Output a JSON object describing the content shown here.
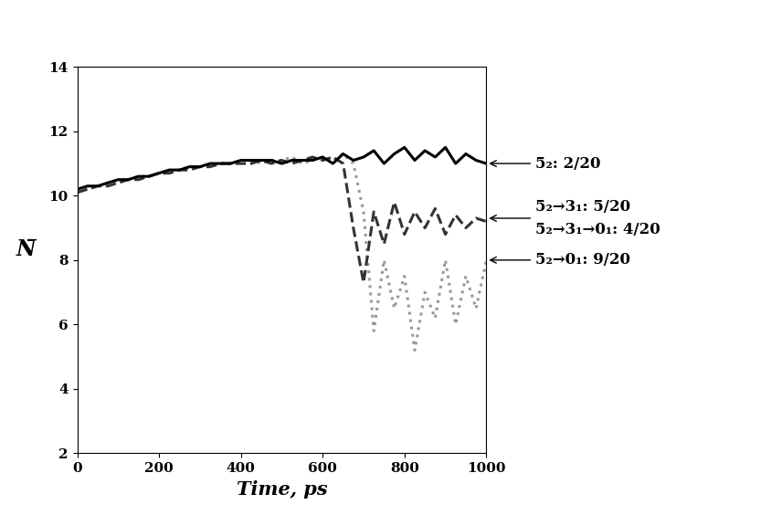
{
  "chart_data": {
    "type": "line",
    "x_label": "Time, ps",
    "y_label": "N̄",
    "x": [
      0,
      25,
      50,
      75,
      100,
      125,
      150,
      175,
      200,
      225,
      250,
      275,
      300,
      325,
      350,
      375,
      400,
      425,
      450,
      475,
      500,
      525,
      550,
      575,
      600,
      625,
      650,
      675,
      700,
      725,
      750,
      775,
      800,
      825,
      850,
      875,
      900,
      925,
      950,
      975,
      1000
    ],
    "series": [
      {
        "color": "#999999",
        "line_style": "dotted",
        "values": [
          10.2,
          10.2,
          10.3,
          10.4,
          10.4,
          10.5,
          10.6,
          10.6,
          10.7,
          10.7,
          10.8,
          10.9,
          10.9,
          10.9,
          11.0,
          11.0,
          11.1,
          11.1,
          11.0,
          11.1,
          11.1,
          11.2,
          11.0,
          11.1,
          11.2,
          11.1,
          11.3,
          11.0,
          9.5,
          5.8,
          8.0,
          6.5,
          7.5,
          5.2,
          7.0,
          6.2,
          8.0,
          6.0,
          7.5,
          6.5,
          8.0
        ]
      },
      {
        "color": "#333333",
        "line_style": "dashed",
        "values": [
          10.1,
          10.2,
          10.3,
          10.3,
          10.4,
          10.5,
          10.5,
          10.6,
          10.7,
          10.7,
          10.8,
          10.8,
          10.9,
          10.9,
          11.0,
          11.0,
          11.0,
          11.0,
          11.1,
          11.0,
          11.1,
          11.0,
          11.1,
          11.2,
          11.1,
          11.2,
          11.0,
          9.0,
          7.3,
          9.5,
          8.5,
          9.8,
          8.8,
          9.5,
          9.0,
          9.6,
          8.8,
          9.4,
          9.0,
          9.3,
          9.2
        ]
      },
      {
        "color": "#000000",
        "line_style": "solid",
        "values": [
          10.2,
          10.3,
          10.3,
          10.4,
          10.5,
          10.5,
          10.6,
          10.6,
          10.7,
          10.8,
          10.8,
          10.9,
          10.9,
          11.0,
          11.0,
          11.0,
          11.1,
          11.1,
          11.1,
          11.1,
          11.0,
          11.1,
          11.1,
          11.1,
          11.2,
          11.0,
          11.3,
          11.1,
          11.2,
          11.4,
          11.0,
          11.3,
          11.5,
          11.1,
          11.4,
          11.2,
          11.5,
          11.0,
          11.3,
          11.1,
          11.0
        ]
      }
    ],
    "xlim": [
      0,
      1000
    ],
    "xticks": [
      0,
      200,
      400,
      600,
      800,
      1000
    ],
    "ylim": [
      2,
      14
    ],
    "yticks": [
      2,
      4,
      6,
      8,
      10,
      12,
      14
    ],
    "grid": false,
    "annotations": [
      {
        "text": [
          "5₂: 2/20"
        ],
        "x": 1000,
        "y": 11
      },
      {
        "text": [
          "5₂→3₁: 5/20",
          "5₂→3₁→0₁: 4/20"
        ],
        "x": 1000,
        "y": 9.3
      },
      {
        "text": [
          "5₂→0₁: 9/20"
        ],
        "x": 1000,
        "y": 8
      }
    ]
  }
}
